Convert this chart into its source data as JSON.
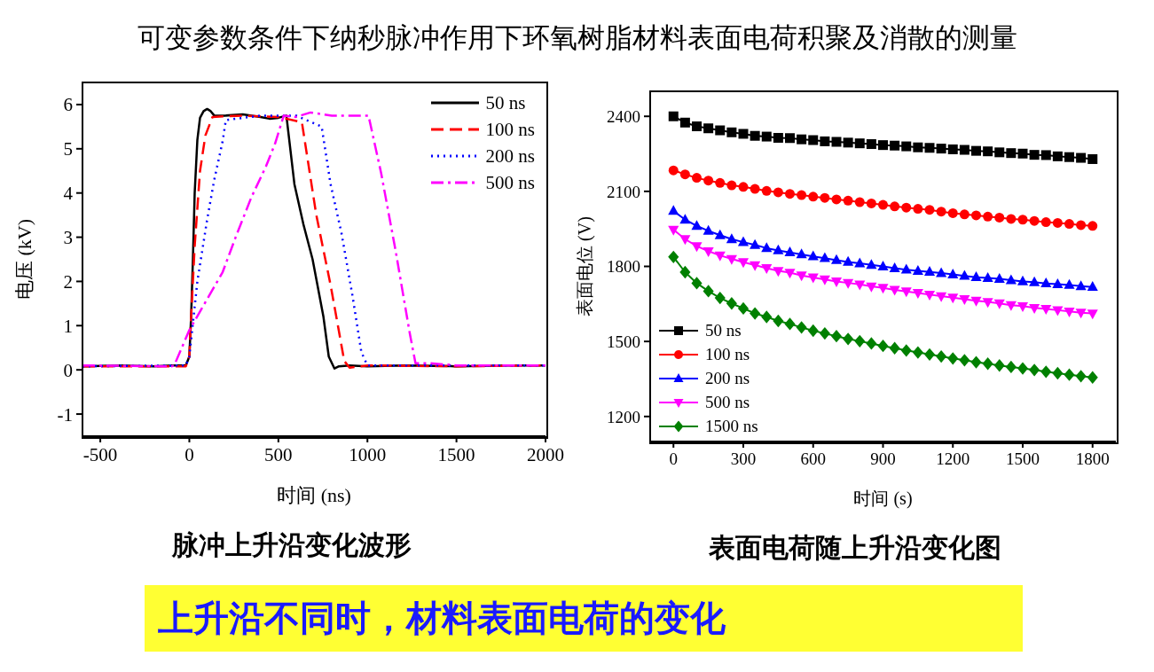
{
  "chart_data": [
    {
      "type": "line",
      "title": "脉冲上升沿变化波形",
      "xlabel": "时间 (ns)",
      "ylabel": "电压 (kV)",
      "annotations": [
        "可变参数条件下纳秒脉冲作用下环氧树脂材料表面电荷积聚及消散的测量",
        "上升沿不同时，材料表面电荷的变化"
      ],
      "xlim": [
        -600,
        2000
      ],
      "xticks": [
        -500,
        0,
        500,
        1000,
        1500,
        2000
      ],
      "ylim": [
        -1.5,
        6.5
      ],
      "yticks": [
        -1,
        0,
        1,
        2,
        3,
        4,
        5,
        6
      ],
      "legend": "top right",
      "marker": "none",
      "series": [
        {
          "name": "50 ns",
          "color": "#000000",
          "line_style": "solid",
          "x": [
            -600,
            -400,
            -200,
            -100,
            -20,
            0,
            10,
            20,
            30,
            45,
            60,
            80,
            100,
            120,
            140,
            200,
            300,
            400,
            450,
            500,
            545,
            590,
            640,
            692,
            753,
            783,
            815,
            840,
            900,
            1000,
            1200,
            1500,
            1800,
            2000
          ],
          "values": [
            0.08,
            0.1,
            0.08,
            0.1,
            0.1,
            0.3,
            1.2,
            2.5,
            4.0,
            5.2,
            5.7,
            5.85,
            5.9,
            5.85,
            5.75,
            5.75,
            5.78,
            5.72,
            5.68,
            5.7,
            5.75,
            4.2,
            3.3,
            2.5,
            1.2,
            0.3,
            0.03,
            0.08,
            0.1,
            0.08,
            0.1,
            0.08,
            0.1,
            0.1
          ]
        },
        {
          "name": "100 ns",
          "color": "#ff0000",
          "line_style": "dashed",
          "x": [
            -600,
            -20,
            0,
            10,
            30,
            60,
            90,
            130,
            300,
            500,
            632,
            713,
            794,
            870,
            900,
            1000,
            1500,
            2000
          ],
          "values": [
            0.08,
            0.08,
            0.3,
            1.2,
            2.8,
            4.5,
            5.3,
            5.72,
            5.75,
            5.72,
            5.6,
            3.5,
            1.9,
            0.2,
            0.05,
            0.1,
            0.08,
            0.1
          ]
        },
        {
          "name": "200 ns",
          "color": "#0000ff",
          "line_style": "dotted",
          "x": [
            -600,
            -20,
            0,
            45,
            100,
            140,
            186,
            205,
            400,
            600,
            743,
            793,
            854,
            915,
            966,
            1000,
            1500,
            2000
          ],
          "values": [
            0.08,
            0.1,
            0.3,
            2.0,
            3.4,
            4.3,
            5.15,
            5.65,
            5.75,
            5.75,
            5.5,
            4.2,
            3.1,
            1.7,
            0.4,
            0.1,
            0.1,
            0.1
          ]
        },
        {
          "name": "500 ns",
          "color": "#ff00ff",
          "line_style": "dashdot",
          "x": [
            -600,
            -100,
            -85,
            0,
            100,
            186,
            260,
            348,
            430,
            480,
            530,
            600,
            680,
            800,
            1006,
            1077,
            1158,
            1239,
            1270,
            1350,
            1500,
            2000
          ],
          "values": [
            0.1,
            0.08,
            0.1,
            0.9,
            1.6,
            2.2,
            3.0,
            3.9,
            4.6,
            5.1,
            5.75,
            5.72,
            5.82,
            5.75,
            5.75,
            4.45,
            2.7,
            0.8,
            0.15,
            0.15,
            0.1,
            0.1
          ]
        }
      ]
    },
    {
      "type": "line",
      "title": "表面电荷随上升沿变化图",
      "xlabel": "时间 (s)",
      "ylabel": "表面电位 (V)",
      "xlim": [
        -100,
        1900
      ],
      "xticks": [
        0,
        300,
        600,
        900,
        1200,
        1500,
        1800
      ],
      "ylim": [
        1100,
        2500
      ],
      "yticks": [
        1200,
        1500,
        1800,
        2100,
        2400
      ],
      "legend": "bottom left",
      "line_style": "solid",
      "x": [
        0,
        50,
        100,
        150,
        200,
        250,
        300,
        350,
        400,
        450,
        500,
        550,
        600,
        650,
        700,
        750,
        800,
        850,
        900,
        950,
        1000,
        1050,
        1100,
        1150,
        1200,
        1250,
        1300,
        1350,
        1400,
        1450,
        1500,
        1550,
        1600,
        1650,
        1700,
        1750,
        1800
      ],
      "series": [
        {
          "name": "50 ns",
          "color": "#000000",
          "marker": "square",
          "values": [
            2400,
            2375,
            2360,
            2352,
            2344,
            2336,
            2330,
            2322,
            2319,
            2314,
            2313,
            2308,
            2305,
            2300,
            2298,
            2295,
            2292,
            2289,
            2285,
            2283,
            2280,
            2276,
            2274,
            2271,
            2268,
            2266,
            2262,
            2260,
            2256,
            2253,
            2251,
            2246,
            2245,
            2240,
            2237,
            2234,
            2229
          ]
        },
        {
          "name": "100 ns",
          "color": "#ff0000",
          "marker": "circle",
          "values": [
            2184,
            2168,
            2154,
            2143,
            2134,
            2124,
            2118,
            2110,
            2102,
            2096,
            2090,
            2085,
            2079,
            2074,
            2068,
            2063,
            2057,
            2052,
            2046,
            2040,
            2035,
            2030,
            2026,
            2019,
            2013,
            2008,
            2004,
            1999,
            1995,
            1990,
            1987,
            1982,
            1977,
            1974,
            1970,
            1965,
            1962
          ]
        },
        {
          "name": "200 ns",
          "color": "#0000ff",
          "marker": "triangle",
          "values": [
            2022,
            1987,
            1962,
            1942,
            1925,
            1909,
            1897,
            1886,
            1873,
            1864,
            1856,
            1848,
            1840,
            1833,
            1825,
            1818,
            1812,
            1806,
            1800,
            1793,
            1787,
            1782,
            1778,
            1773,
            1768,
            1762,
            1757,
            1754,
            1750,
            1745,
            1740,
            1737,
            1732,
            1729,
            1726,
            1721,
            1718
          ]
        },
        {
          "name": "500 ns",
          "color": "#ff00ff",
          "marker": "triangle-down",
          "values": [
            1947,
            1909,
            1881,
            1861,
            1844,
            1830,
            1817,
            1805,
            1793,
            1782,
            1775,
            1764,
            1756,
            1748,
            1740,
            1734,
            1728,
            1720,
            1714,
            1706,
            1700,
            1694,
            1687,
            1681,
            1675,
            1669,
            1663,
            1658,
            1652,
            1645,
            1641,
            1634,
            1630,
            1625,
            1620,
            1615,
            1612
          ]
        },
        {
          "name": "1500 ns",
          "color": "#008000",
          "marker": "diamond",
          "values": [
            1838,
            1777,
            1733,
            1701,
            1674,
            1652,
            1632,
            1612,
            1598,
            1582,
            1570,
            1556,
            1543,
            1532,
            1521,
            1510,
            1501,
            1492,
            1482,
            1473,
            1464,
            1456,
            1448,
            1440,
            1432,
            1425,
            1417,
            1411,
            1404,
            1398,
            1392,
            1386,
            1379,
            1373,
            1367,
            1361,
            1356
          ]
        }
      ]
    }
  ]
}
